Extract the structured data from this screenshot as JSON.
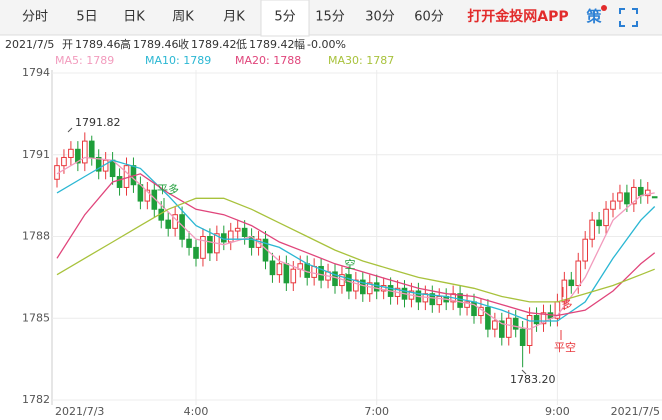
{
  "tabs": [
    "分时",
    "5日",
    "日K",
    "周K",
    "月K",
    "5分",
    "15分",
    "30分",
    "60分"
  ],
  "active_tab": 5,
  "promo": "打开金投网APP",
  "strategy": "策",
  "info": [
    "2021/7/5",
    "开",
    "1789.46",
    "高",
    "1789.46",
    "收",
    "1789.42",
    "低",
    "1789.42",
    "幅",
    "-0.00%"
  ],
  "chart_data": {
    "type": "candlestick",
    "categories": [
      "2021/7/3",
      null,
      null,
      null,
      null,
      null,
      null,
      null,
      null,
      null,
      null,
      null,
      null,
      null,
      null,
      null,
      null,
      null,
      null,
      null,
      "4:00",
      null,
      null,
      null,
      null,
      null,
      null,
      null,
      null,
      null,
      null,
      null,
      null,
      null,
      null,
      null,
      null,
      null,
      null,
      null,
      null,
      null,
      null,
      null,
      null,
      null,
      "7:00",
      null,
      null,
      null,
      null,
      null,
      null,
      null,
      null,
      null,
      null,
      null,
      null,
      null,
      null,
      null,
      null,
      null,
      null,
      null,
      null,
      null,
      null,
      null,
      null,
      null,
      "9:00",
      null,
      null,
      null,
      null,
      null,
      null,
      null,
      null,
      null,
      null,
      null,
      null,
      null,
      "2021/7/5"
    ],
    "open": [
      1790.1,
      1790.6,
      1790.9,
      1791.2,
      1790.7,
      1791.5,
      1790.9,
      1790.4,
      1790.8,
      1790.2,
      1789.8,
      1790.6,
      1789.9,
      1789.3,
      1789.7,
      1789.0,
      1788.6,
      1788.3,
      1788.8,
      1787.9,
      1787.6,
      1787.2,
      1788.0,
      1787.4,
      1788.1,
      1787.8,
      1788.2,
      1788.3,
      1788.0,
      1787.6,
      1787.9,
      1787.1,
      1786.6,
      1787.0,
      1786.3,
      1786.8,
      1787.0,
      1786.5,
      1786.9,
      1786.4,
      1786.7,
      1786.2,
      1786.6,
      1786.0,
      1786.4,
      1785.9,
      1786.3,
      1786.0,
      1786.2,
      1785.8,
      1786.1,
      1785.7,
      1786.0,
      1785.6,
      1785.9,
      1785.5,
      1785.8,
      1785.6,
      1785.9,
      1785.4,
      1785.6,
      1785.1,
      1785.4,
      1784.6,
      1784.9,
      1784.3,
      1785.0,
      1784.6,
      1784.0,
      1785.1,
      1784.8,
      1785.2,
      1785.0,
      1785.6,
      1786.4,
      1786.2,
      1787.1,
      1787.9,
      1788.6,
      1788.4,
      1789.0,
      1789.3,
      1789.6,
      1789.2,
      1789.8,
      1789.5,
      1789.46
    ],
    "high": [
      1790.9,
      1791.2,
      1791.5,
      1791.5,
      1791.82,
      1791.7,
      1791.2,
      1791.1,
      1791.1,
      1790.5,
      1790.9,
      1790.9,
      1790.2,
      1790.0,
      1790.0,
      1789.3,
      1788.9,
      1789.1,
      1789.1,
      1788.2,
      1787.9,
      1788.3,
      1788.3,
      1788.4,
      1788.4,
      1788.5,
      1788.6,
      1788.6,
      1788.3,
      1788.2,
      1788.2,
      1787.4,
      1787.3,
      1787.3,
      1787.1,
      1787.3,
      1787.3,
      1787.2,
      1787.2,
      1787.0,
      1787.0,
      1786.9,
      1786.9,
      1786.7,
      1786.7,
      1786.6,
      1786.6,
      1786.5,
      1786.5,
      1786.4,
      1786.4,
      1786.3,
      1786.3,
      1786.2,
      1786.2,
      1786.1,
      1786.1,
      1786.2,
      1786.2,
      1785.9,
      1785.9,
      1785.7,
      1785.7,
      1785.2,
      1785.2,
      1785.3,
      1785.3,
      1784.9,
      1785.4,
      1785.4,
      1785.5,
      1785.5,
      1785.9,
      1786.7,
      1786.7,
      1787.4,
      1788.2,
      1788.9,
      1788.9,
      1789.3,
      1789.6,
      1789.9,
      1789.9,
      1790.1,
      1790.1,
      1790.0,
      1789.46
    ],
    "low": [
      1789.8,
      1790.3,
      1790.6,
      1790.4,
      1790.4,
      1790.6,
      1790.1,
      1790.1,
      1789.9,
      1789.5,
      1789.5,
      1789.6,
      1789.0,
      1789.0,
      1788.7,
      1788.3,
      1788.0,
      1788.0,
      1787.6,
      1787.3,
      1786.9,
      1786.9,
      1787.1,
      1787.1,
      1787.5,
      1787.5,
      1787.9,
      1787.7,
      1787.3,
      1787.3,
      1786.8,
      1786.3,
      1786.3,
      1786.0,
      1786.0,
      1786.5,
      1786.2,
      1786.2,
      1786.1,
      1786.1,
      1785.9,
      1785.9,
      1785.7,
      1785.7,
      1785.6,
      1785.6,
      1785.7,
      1785.7,
      1785.5,
      1785.5,
      1785.4,
      1785.4,
      1785.3,
      1785.3,
      1785.2,
      1785.2,
      1785.3,
      1785.3,
      1785.1,
      1785.1,
      1784.8,
      1784.8,
      1784.3,
      1784.3,
      1784.0,
      1784.0,
      1784.3,
      1783.2,
      1783.7,
      1784.5,
      1784.5,
      1784.7,
      1784.7,
      1785.3,
      1785.9,
      1785.9,
      1786.8,
      1787.6,
      1788.1,
      1788.1,
      1788.7,
      1789.0,
      1788.9,
      1788.9,
      1789.2,
      1789.2,
      1789.42
    ],
    "close": [
      1790.6,
      1790.9,
      1791.2,
      1790.7,
      1791.5,
      1790.9,
      1790.4,
      1790.8,
      1790.2,
      1789.8,
      1790.6,
      1789.9,
      1789.3,
      1789.7,
      1789.0,
      1788.6,
      1788.3,
      1788.8,
      1787.9,
      1787.6,
      1787.2,
      1788.0,
      1787.4,
      1788.1,
      1787.8,
      1788.2,
      1788.3,
      1788.0,
      1787.6,
      1787.9,
      1787.1,
      1786.6,
      1787.0,
      1786.3,
      1786.8,
      1787.0,
      1786.5,
      1786.9,
      1786.4,
      1786.7,
      1786.2,
      1786.6,
      1786.0,
      1786.4,
      1785.9,
      1786.3,
      1786.0,
      1786.2,
      1785.8,
      1786.1,
      1785.7,
      1786.0,
      1785.6,
      1785.9,
      1785.5,
      1785.8,
      1785.6,
      1785.9,
      1785.4,
      1785.6,
      1785.1,
      1785.4,
      1784.6,
      1784.9,
      1784.3,
      1785.0,
      1784.6,
      1784.0,
      1785.1,
      1784.8,
      1785.2,
      1785.0,
      1785.6,
      1786.4,
      1786.2,
      1787.1,
      1787.9,
      1788.6,
      1788.4,
      1789.0,
      1789.3,
      1789.6,
      1789.2,
      1789.8,
      1789.5,
      1789.7,
      1789.42
    ],
    "up_color": "#e8383d",
    "down_color": "#1f9e3a",
    "ylim": [
      1782,
      1794
    ],
    "yticks": [
      1782,
      1785,
      1788,
      1791,
      1794
    ],
    "grid": true,
    "series": [
      {
        "name": "MA5: 1789",
        "color": "#f29bbd",
        "x": [
          0,
          4,
          8,
          12,
          16,
          20,
          24,
          28,
          32,
          36,
          40,
          44,
          48,
          52,
          56,
          60,
          64,
          68,
          72,
          76,
          80,
          84,
          86
        ],
        "values": [
          1790.3,
          1790.9,
          1790.8,
          1789.9,
          1788.9,
          1787.9,
          1787.7,
          1788.0,
          1787.1,
          1786.7,
          1786.5,
          1786.2,
          1786.0,
          1785.8,
          1785.7,
          1785.5,
          1784.8,
          1784.6,
          1785.1,
          1786.5,
          1788.6,
          1789.5,
          1789.6
        ]
      },
      {
        "name": "MA10: 1789",
        "color": "#2bb7d3",
        "x": [
          0,
          4,
          8,
          12,
          16,
          20,
          24,
          28,
          32,
          36,
          40,
          44,
          48,
          52,
          56,
          60,
          64,
          68,
          72,
          76,
          80,
          84,
          86
        ],
        "values": [
          1789.6,
          1790.2,
          1790.8,
          1790.5,
          1789.5,
          1788.4,
          1787.9,
          1787.9,
          1787.6,
          1787.0,
          1786.6,
          1786.3,
          1786.1,
          1785.9,
          1785.8,
          1785.6,
          1785.3,
          1784.9,
          1784.9,
          1785.6,
          1787.2,
          1788.6,
          1789.1
        ]
      },
      {
        "name": "MA20: 1788",
        "color": "#e0457b",
        "x": [
          0,
          4,
          8,
          12,
          16,
          20,
          24,
          28,
          32,
          36,
          40,
          44,
          48,
          52,
          56,
          60,
          64,
          68,
          72,
          76,
          80,
          84,
          86
        ],
        "values": [
          1787.2,
          1788.8,
          1790.0,
          1790.3,
          1789.6,
          1789.0,
          1788.8,
          1788.4,
          1787.8,
          1787.4,
          1787.0,
          1786.7,
          1786.4,
          1786.1,
          1785.9,
          1785.8,
          1785.5,
          1785.2,
          1785.1,
          1785.3,
          1786.0,
          1787.0,
          1787.4
        ]
      },
      {
        "name": "MA30: 1787",
        "color": "#a8c23c",
        "x": [
          0,
          4,
          8,
          12,
          16,
          20,
          24,
          28,
          32,
          36,
          40,
          44,
          48,
          52,
          56,
          60,
          64,
          68,
          72,
          76,
          80,
          84,
          86
        ],
        "values": [
          1786.6,
          1787.2,
          1787.8,
          1788.4,
          1789.0,
          1789.4,
          1789.4,
          1789.0,
          1788.5,
          1788.0,
          1787.5,
          1787.1,
          1786.8,
          1786.5,
          1786.3,
          1786.1,
          1785.8,
          1785.6,
          1785.6,
          1785.9,
          1786.2,
          1786.6,
          1786.8
        ]
      }
    ],
    "annotations": [
      {
        "text": "1791.82"
      },
      {
        "text": "1783.20"
      }
    ],
    "signals": [
      "平多",
      "空",
      "多",
      "平空"
    ]
  }
}
